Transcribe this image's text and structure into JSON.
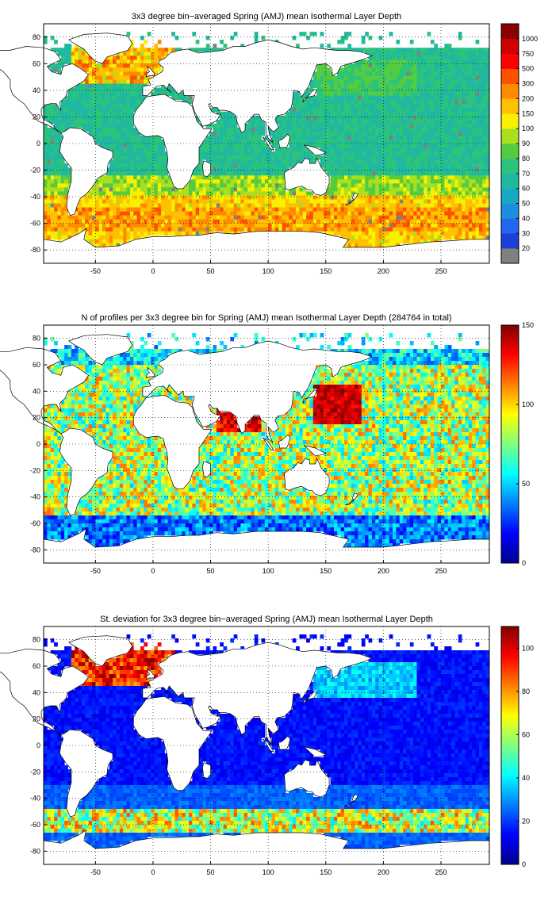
{
  "chart_data": [
    {
      "type": "heatmap",
      "title": "3x3 degree bin−averaged Spring (AMJ) mean Isothermal Layer Depth",
      "xlim": [
        -95,
        292
      ],
      "ylim": [
        -90,
        90
      ],
      "xticks": [
        -50,
        0,
        50,
        100,
        150,
        200,
        250
      ],
      "yticks": [
        -80,
        -60,
        -40,
        -20,
        0,
        20,
        40,
        60,
        80
      ],
      "grid": true,
      "colorbar": {
        "scale": "discrete",
        "labels": [
          "20",
          "30",
          "40",
          "50",
          "60",
          "70",
          "80",
          "90",
          "100",
          "150",
          "200",
          "300",
          "500",
          "750",
          "1000"
        ],
        "colors": [
          "#808080",
          "#1e3fd8",
          "#2566ee",
          "#1b8ee0",
          "#17a8c4",
          "#20b9a0",
          "#2cc47a",
          "#55cc40",
          "#a8e020",
          "#f7f000",
          "#ffc000",
          "#ff8a00",
          "#ff5000",
          "#ff0000",
          "#d00000",
          "#8a0000"
        ]
      }
    },
    {
      "type": "heatmap",
      "title": "N of profiles per 3x3 degree bin for Spring (AMJ) mean Isothermal Layer Depth  (284764 in total)",
      "xlim": [
        -95,
        292
      ],
      "ylim": [
        -90,
        90
      ],
      "xticks": [
        -50,
        0,
        50,
        100,
        150,
        200,
        250
      ],
      "yticks": [
        -80,
        -60,
        -40,
        -20,
        0,
        20,
        40,
        60,
        80
      ],
      "grid": true,
      "colorbar": {
        "scale": "continuous",
        "min": 0,
        "max": 150,
        "ticks": [
          "0",
          "50",
          "100",
          "150"
        ],
        "colormap": "jet"
      }
    },
    {
      "type": "heatmap",
      "title": "St. deviation for 3x3 degree bin−averaged Spring (AMJ) mean Isothermal Layer Depth",
      "xlim": [
        -95,
        292
      ],
      "ylim": [
        -90,
        90
      ],
      "xticks": [
        -50,
        0,
        50,
        100,
        150,
        200,
        250
      ],
      "yticks": [
        -80,
        -60,
        -40,
        -20,
        0,
        20,
        40,
        60,
        80
      ],
      "grid": true,
      "colorbar": {
        "scale": "continuous",
        "min": 0,
        "max": 110,
        "ticks": [
          "0",
          "20",
          "40",
          "60",
          "80",
          "100"
        ],
        "colormap": "jet"
      }
    }
  ]
}
